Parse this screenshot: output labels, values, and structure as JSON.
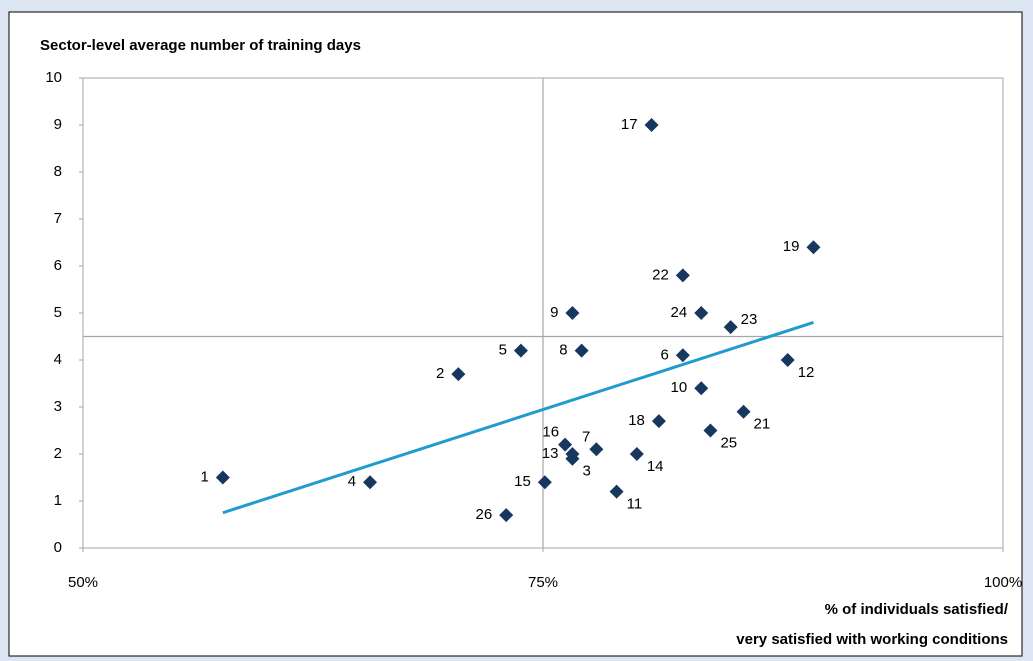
{
  "chart_data": {
    "type": "scatter",
    "title": "Sector-level average number of training days",
    "x_label": [
      "% of individuals satisfied/",
      "very satisfied with working conditions"
    ],
    "labels": [
      "1",
      "2",
      "3",
      "4",
      "5",
      "6",
      "7",
      "8",
      "9",
      "10",
      "11",
      "12",
      "13",
      "14",
      "15",
      "16",
      "17",
      "18",
      "19",
      "21",
      "22",
      "23",
      "24",
      "25",
      "26"
    ],
    "x": [
      57.6,
      70.4,
      76.6,
      65.6,
      73.8,
      82.6,
      77.9,
      77.1,
      76.6,
      83.6,
      79.0,
      88.3,
      76.6,
      80.1,
      75.1,
      76.2,
      80.9,
      81.3,
      89.7,
      85.9,
      82.6,
      85.2,
      83.6,
      84.1,
      73.0
    ],
    "y": [
      1.5,
      3.7,
      1.9,
      1.4,
      4.2,
      4.1,
      2.1,
      4.2,
      5.0,
      3.4,
      1.2,
      4.0,
      2.0,
      2.0,
      1.4,
      2.2,
      9.0,
      2.7,
      6.4,
      2.9,
      5.8,
      4.7,
      5.0,
      2.5,
      0.7
    ],
    "color": "#17375e",
    "trendline": {
      "x": [
        57.6,
        89.7
      ],
      "y": [
        0.75,
        4.8
      ],
      "color": "#1f9bcf"
    },
    "reference_lines": {
      "x": 75,
      "y": 4.5,
      "color": "#a6a6a6"
    },
    "xlim": [
      50,
      100
    ],
    "xticks": [
      {
        "value": 50,
        "label": "50%"
      },
      {
        "value": 75,
        "label": "75%"
      },
      {
        "value": 100,
        "label": "100%"
      }
    ],
    "ylim": [
      0,
      10
    ],
    "yticks": [
      0,
      1,
      2,
      3,
      4,
      5,
      6,
      7,
      8,
      9,
      10
    ]
  }
}
